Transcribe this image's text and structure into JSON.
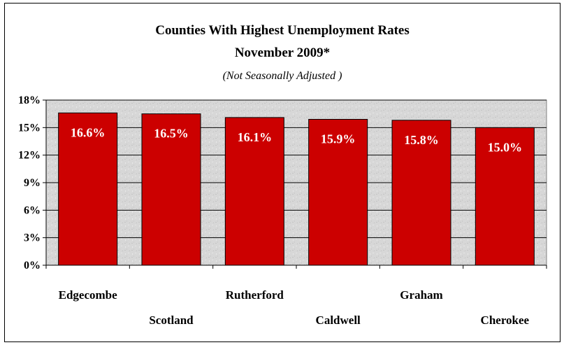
{
  "chart_data": {
    "type": "bar",
    "title": "Counties With Highest Unemployment Rates",
    "subtitle": "November 2009*",
    "note": "(Not Seasonally Adjusted )",
    "categories": [
      "Edgecombe",
      "Scotland",
      "Rutherford",
      "Caldwell",
      "Graham",
      "Cherokee"
    ],
    "values": [
      16.6,
      16.5,
      16.1,
      15.9,
      15.8,
      15.0
    ],
    "data_labels": [
      "16.6%",
      "16.5%",
      "16.1%",
      "15.9%",
      "15.8%",
      "15.0%"
    ],
    "ylim": [
      0,
      18
    ],
    "y_ticks": [
      0,
      3,
      6,
      9,
      12,
      15,
      18
    ],
    "y_tick_labels": [
      "0%",
      "3%",
      "6%",
      "9%",
      "12%",
      "15%",
      "18%"
    ],
    "xlabel": "",
    "ylabel": "",
    "legend": "none",
    "grid": true,
    "colors": {
      "bar_fill": "#cc0000",
      "bar_stroke": "#000000",
      "plot_background": "#d9d9d9",
      "gridline": "#000000",
      "data_label": "#ffffff"
    }
  }
}
